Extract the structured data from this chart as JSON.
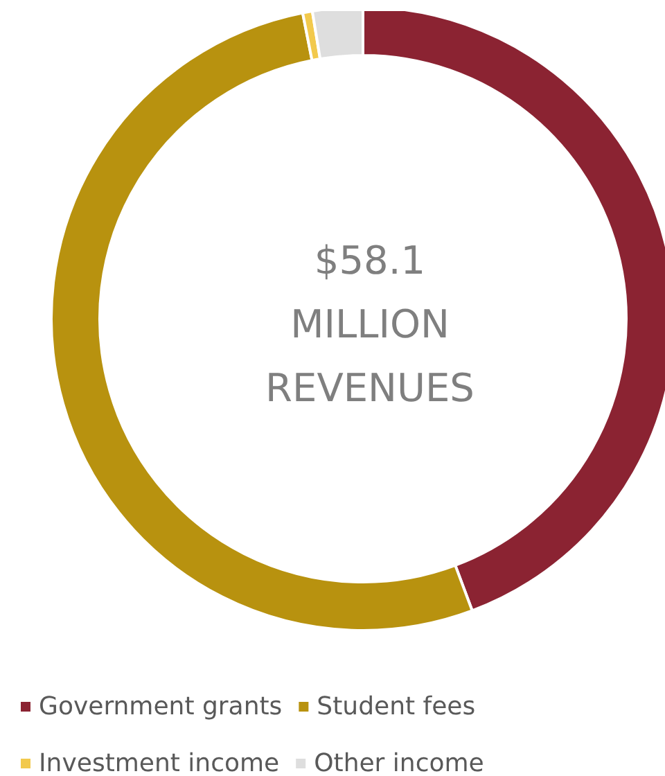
{
  "chart_data": {
    "type": "donut",
    "title": "$58.1\nMILLION\nREVENUES",
    "categories": [
      "Government grants",
      "Student fees",
      "Investment income",
      "Other income"
    ],
    "values": [
      44.3,
      52.6,
      0.5,
      2.6
    ],
    "colors": [
      "#8b2332",
      "#b8920f",
      "#f2c94c",
      "#dedede"
    ],
    "legend": "bottom"
  }
}
